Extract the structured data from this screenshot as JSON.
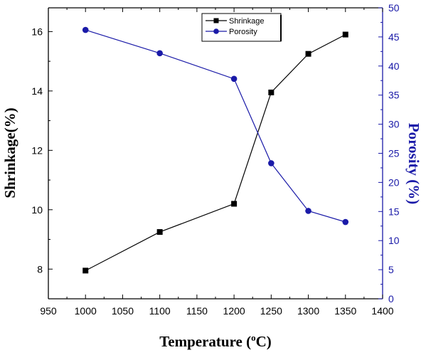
{
  "chart_data": {
    "type": "line",
    "xlabel": "Temperature (",
    "xlabel_sup": "o",
    "xlabel_unit": "C)",
    "ylabel_left": "Shrinkage(%)",
    "ylabel_right": "Porosity (%)",
    "xlim": [
      950,
      1400
    ],
    "ylim_left": [
      7.0,
      16.8
    ],
    "ylim_right": [
      0,
      50
    ],
    "x_ticks": [
      950,
      1000,
      1050,
      1100,
      1150,
      1200,
      1250,
      1300,
      1350,
      1400
    ],
    "y_left_ticks": [
      8,
      10,
      12,
      14,
      16
    ],
    "y_right_ticks": [
      0,
      5,
      10,
      15,
      20,
      25,
      30,
      35,
      40,
      45,
      50
    ],
    "legend_position": "top-center",
    "series": [
      {
        "name": "Shrinkage",
        "axis": "left",
        "color": "#000000",
        "marker": "square",
        "x": [
          1000,
          1100,
          1200,
          1250,
          1300,
          1350
        ],
        "values": [
          7.95,
          9.25,
          10.2,
          13.95,
          15.25,
          15.9
        ]
      },
      {
        "name": "Porosity",
        "axis": "right",
        "color": "#1a1aa8",
        "marker": "circle",
        "x": [
          1000,
          1100,
          1200,
          1250,
          1300,
          1350
        ],
        "values": [
          46.2,
          42.2,
          37.8,
          23.3,
          15.1,
          13.2
        ]
      }
    ]
  },
  "colors": {
    "left_axis": "#000000",
    "right_axis": "#1a1aa8"
  }
}
